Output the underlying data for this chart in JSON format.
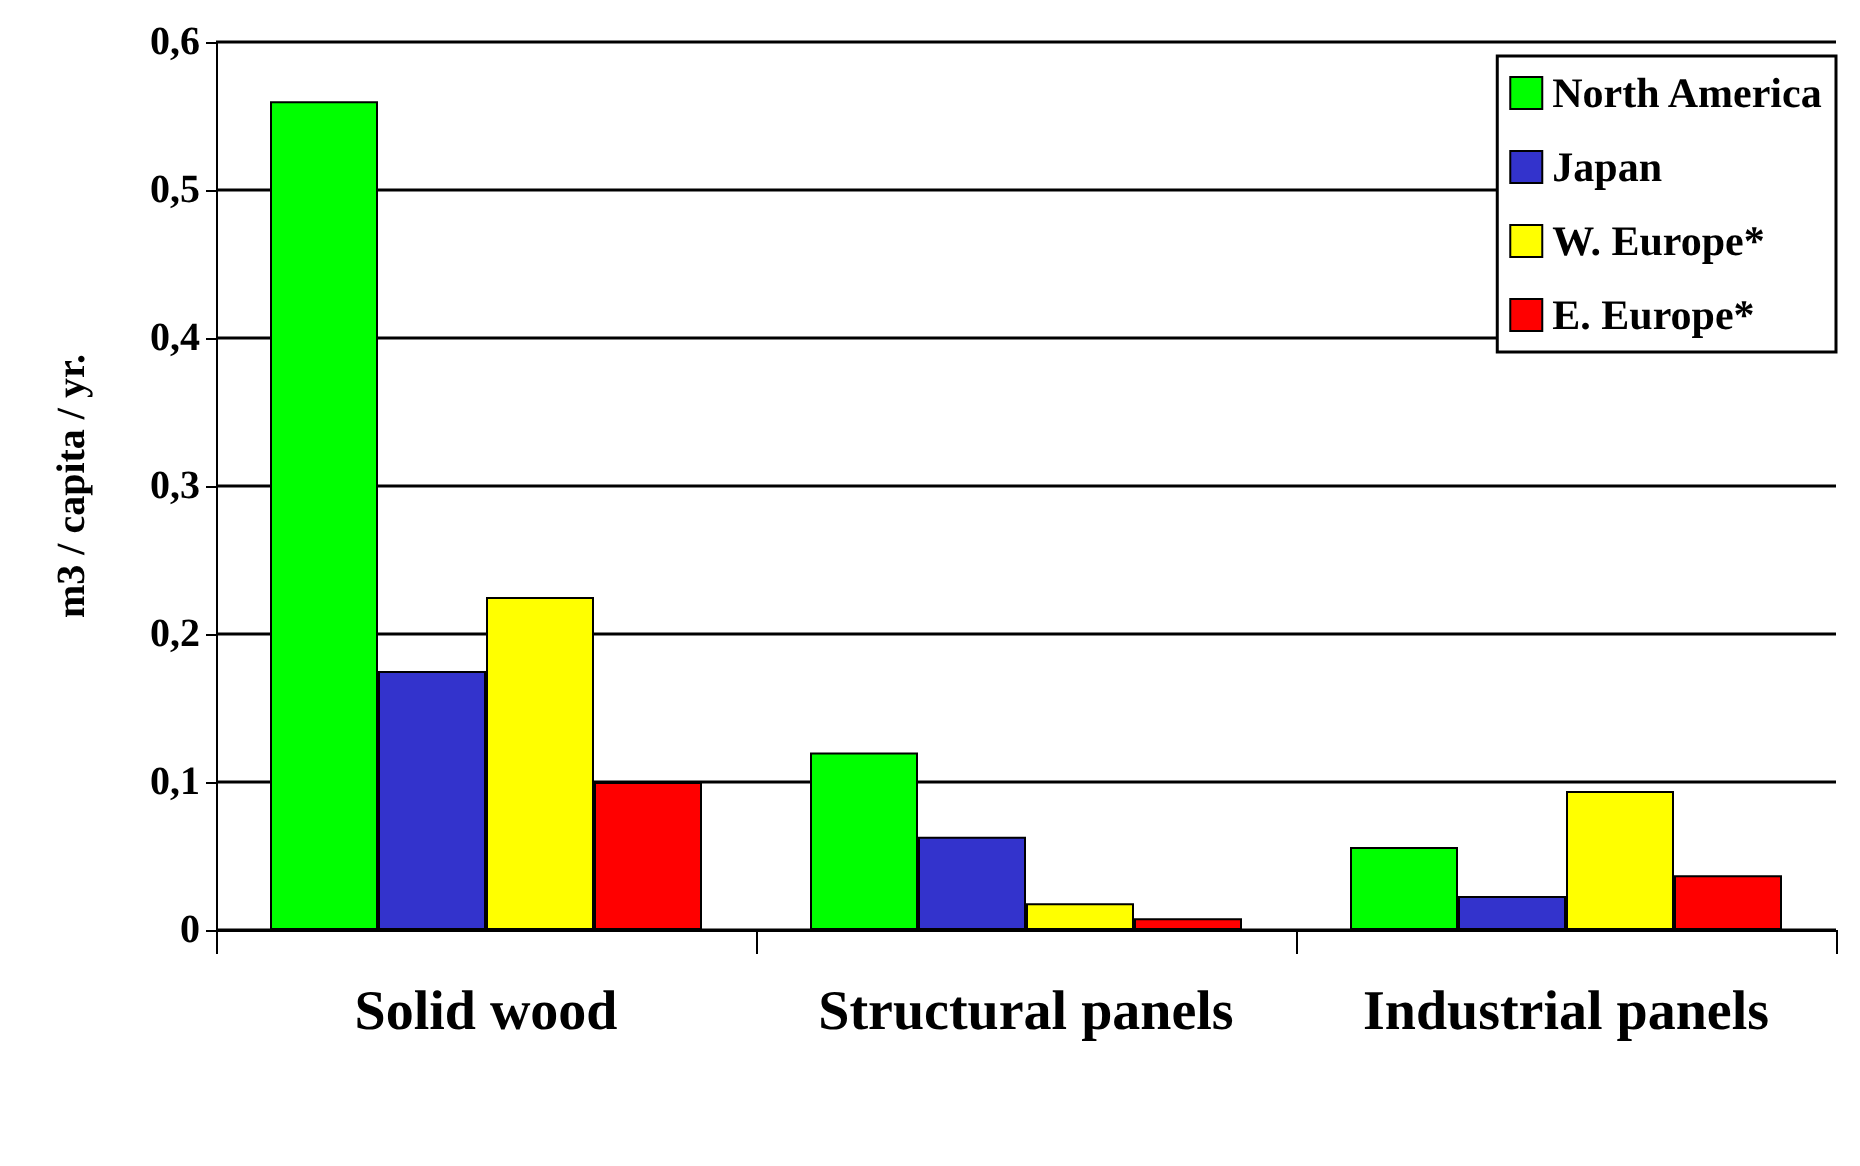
{
  "chart_data": {
    "type": "bar",
    "ylabel": "m3 / capita / yr.",
    "categories": [
      "Solid wood",
      "Structural panels",
      "Industrial panels"
    ],
    "series": [
      {
        "name": "North America",
        "color": "#00ff00",
        "values": [
          0.56,
          0.12,
          0.056
        ]
      },
      {
        "name": "Japan",
        "color": "#3333cc",
        "values": [
          0.175,
          0.063,
          0.023
        ]
      },
      {
        "name": "W. Europe*",
        "color": "#ffff00",
        "values": [
          0.225,
          0.018,
          0.094
        ]
      },
      {
        "name": "E. Europe*",
        "color": "#ff0000",
        "values": [
          0.1,
          0.008,
          0.037
        ]
      }
    ],
    "ylim": [
      0,
      0.6
    ],
    "yticks": [
      0,
      {
        "value": 0.1,
        "label": "0,1"
      },
      {
        "value": 0.2,
        "label": "0,2"
      },
      {
        "value": 0.3,
        "label": "0,3"
      },
      {
        "value": 0.4,
        "label": "0,4"
      },
      {
        "value": 0.5,
        "label": "0,5"
      },
      {
        "value": 0.6,
        "label": "0,6"
      }
    ],
    "grid": "y",
    "legend": "top right"
  }
}
